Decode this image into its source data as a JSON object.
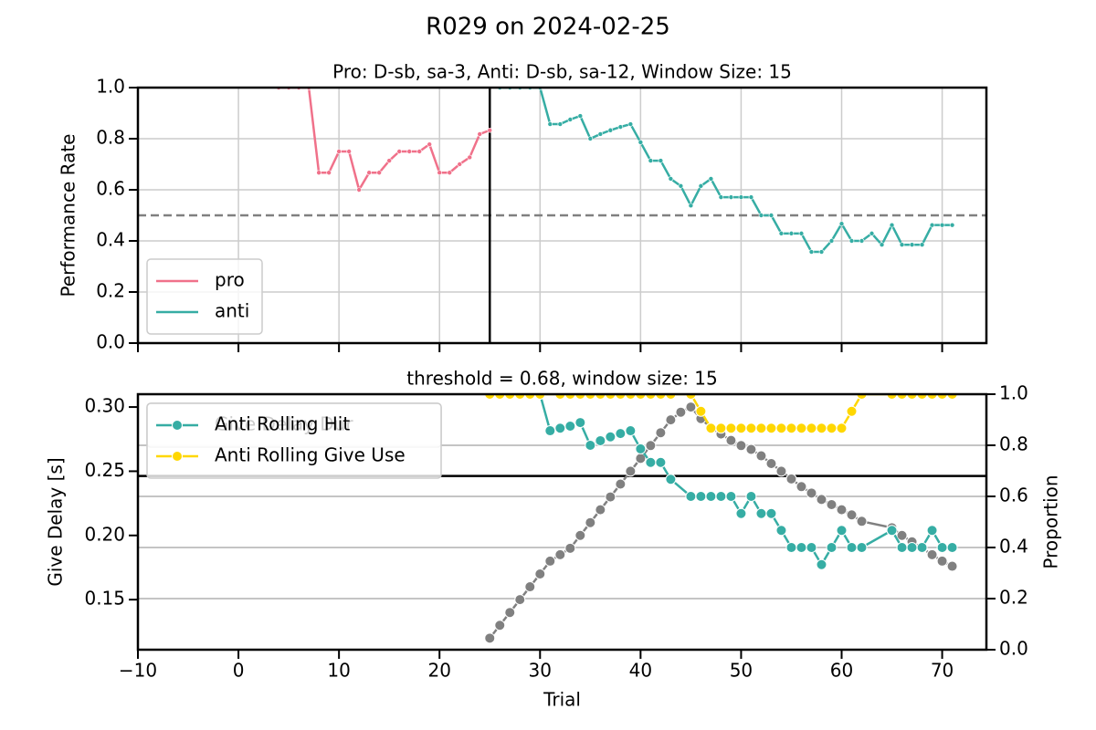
{
  "title": "R029 on 2024-02-25",
  "chart_data": [
    {
      "type": "line",
      "title": "Pro: D-sb, sa-3, Anti: D-sb, sa-12, Window Size: 15",
      "ylabel": "Performance Rate",
      "xlim": [
        -10,
        74.4
      ],
      "xticks": [
        -10,
        0,
        10,
        20,
        30,
        40,
        50,
        60,
        70
      ],
      "show_xticklabels": false,
      "ylim": [
        0,
        1
      ],
      "yticks": [
        {
          "value": 0,
          "label": "0.0"
        },
        0.2,
        0.4,
        0.6,
        0.8,
        {
          "value": 1,
          "label": "1.0"
        }
      ],
      "grid": "both",
      "legend": "lower left",
      "hlines": [
        {
          "value": 0.5,
          "axis": "y",
          "color": "#808080",
          "dash": true
        }
      ],
      "vlines": [
        {
          "value": 25,
          "color": "#000000"
        }
      ],
      "series": [
        {
          "name": "pro",
          "color": "#f0718a",
          "x": [
            4,
            5,
            6,
            7,
            8,
            9,
            10,
            11,
            12,
            13,
            14,
            15,
            16,
            17,
            18,
            19,
            20,
            21,
            22,
            23,
            24,
            25
          ],
          "values": [
            1,
            1,
            1,
            1,
            0.667,
            0.667,
            0.75,
            0.75,
            0.6,
            0.667,
            0.667,
            0.714,
            0.75,
            0.75,
            0.75,
            0.778,
            0.667,
            0.667,
            0.7,
            0.727,
            0.818,
            0.833
          ]
        },
        {
          "name": "anti",
          "color": "#36ada4",
          "x": [
            26,
            27,
            28,
            29,
            30,
            31,
            32,
            33,
            34,
            35,
            36,
            37,
            38,
            39,
            40,
            41,
            42,
            43,
            44,
            45,
            46,
            47,
            48,
            49,
            50,
            51,
            52,
            53,
            54,
            55,
            56,
            57,
            58,
            59,
            60,
            61,
            62,
            63,
            64,
            65,
            66,
            67,
            68,
            69,
            70,
            71
          ],
          "values": [
            1,
            1,
            1,
            1,
            1,
            0.857,
            0.857,
            0.875,
            0.889,
            0.8,
            0.818,
            0.833,
            0.846,
            0.857,
            0.786,
            0.714,
            0.714,
            0.643,
            0.615,
            0.538,
            0.615,
            0.643,
            0.571,
            0.571,
            0.571,
            0.571,
            0.5,
            0.5,
            0.429,
            0.429,
            0.429,
            0.357,
            0.357,
            0.4,
            0.467,
            0.4,
            0.4,
            0.429,
            0.385,
            0.462,
            0.385,
            0.385,
            0.385,
            0.462,
            0.462,
            0.462
          ]
        }
      ]
    },
    {
      "type": "line",
      "title": "threshold = 0.68, window size: 15",
      "xlabel": "Trial",
      "ylabel": "Give Delay [s]",
      "y2label": "Proportion",
      "xlim": [
        -10,
        74.4
      ],
      "xticks": [
        {
          "value": -10,
          "label": "−10"
        },
        0,
        10,
        20,
        30,
        40,
        50,
        60,
        70
      ],
      "show_xticklabels": true,
      "ylim": [
        0.111,
        0.31
      ],
      "yticks": [
        {
          "value": 0.15,
          "label": "0.15"
        },
        {
          "value": 0.2,
          "label": "0.20"
        },
        {
          "value": 0.25,
          "label": "0.25"
        },
        {
          "value": 0.3,
          "label": "0.30"
        }
      ],
      "y2lim": [
        0,
        1
      ],
      "y2ticks": [
        {
          "value": 0,
          "label": "0.0"
        },
        0.2,
        0.4,
        0.6,
        0.8,
        {
          "value": 1,
          "label": "1.0"
        }
      ],
      "grid": "y2",
      "legend": "upper left",
      "hlines": [
        {
          "value": 0.68,
          "axis": "y2",
          "color": "#000000",
          "dash": false
        }
      ],
      "vlines": [],
      "series": [
        {
          "name": "Give Delay Dur",
          "color": "#808080",
          "axis": "y",
          "x": [
            25,
            26,
            27,
            28,
            29,
            30,
            31,
            32,
            33,
            34,
            35,
            36,
            37,
            38,
            39,
            40,
            41,
            42,
            43,
            44,
            45,
            46,
            47,
            48,
            49,
            50,
            51,
            52,
            53,
            54,
            55,
            56,
            57,
            58,
            59,
            60,
            61,
            62,
            65,
            66,
            67,
            68,
            69,
            70,
            71
          ],
          "values": [
            0.12,
            0.13,
            0.14,
            0.15,
            0.16,
            0.17,
            0.18,
            0.185,
            0.19,
            0.2,
            0.21,
            0.22,
            0.23,
            0.24,
            0.25,
            0.26,
            0.27,
            0.28,
            0.29,
            0.296,
            0.3,
            0.291,
            0.284,
            0.279,
            0.274,
            0.27,
            0.267,
            0.262,
            0.256,
            0.25,
            0.244,
            0.238,
            0.233,
            0.228,
            0.224,
            0.22,
            0.216,
            0.211,
            0.206,
            0.2,
            0.195,
            0.19,
            0.185,
            0.18,
            0.176
          ]
        },
        {
          "name": "Anti Rolling Hit",
          "color": "#36ada4",
          "axis": "y2",
          "x": [
            30,
            31,
            32,
            33,
            34,
            35,
            36,
            37,
            38,
            39,
            40,
            41,
            42,
            43,
            45,
            46,
            47,
            48,
            49,
            50,
            51,
            52,
            53,
            54,
            55,
            56,
            57,
            58,
            59,
            60,
            61,
            62,
            65,
            66,
            67,
            68,
            69,
            70,
            71
          ],
          "values": [
            1,
            0.857,
            0.867,
            0.875,
            0.889,
            0.8,
            0.818,
            0.833,
            0.846,
            0.857,
            0.786,
            0.733,
            0.733,
            0.667,
            0.6,
            0.6,
            0.6,
            0.6,
            0.6,
            0.533,
            0.6,
            0.533,
            0.533,
            0.467,
            0.4,
            0.4,
            0.4,
            0.333,
            0.4,
            0.467,
            0.4,
            0.4,
            0.467,
            0.4,
            0.4,
            0.4,
            0.467,
            0.4,
            0.4
          ]
        },
        {
          "name": "Anti Rolling Give Use",
          "color": "#ffd700",
          "axis": "y2",
          "x": [
            25,
            26,
            27,
            28,
            29,
            30,
            32,
            33,
            34,
            35,
            36,
            37,
            38,
            39,
            40,
            41,
            42,
            43,
            45,
            46,
            47,
            48,
            49,
            50,
            51,
            52,
            53,
            54,
            55,
            56,
            57,
            58,
            59,
            60,
            61,
            62,
            65,
            66,
            67,
            68,
            69,
            70,
            71
          ],
          "values": [
            1,
            1,
            1,
            1,
            1,
            1,
            1,
            1,
            1,
            1,
            1,
            1,
            1,
            1,
            1,
            1,
            1,
            1,
            1,
            0.933,
            0.867,
            0.867,
            0.867,
            0.867,
            0.867,
            0.867,
            0.867,
            0.867,
            0.867,
            0.867,
            0.867,
            0.867,
            0.867,
            0.867,
            0.933,
            1,
            1,
            1,
            1,
            1,
            1,
            1,
            1
          ]
        }
      ]
    }
  ]
}
